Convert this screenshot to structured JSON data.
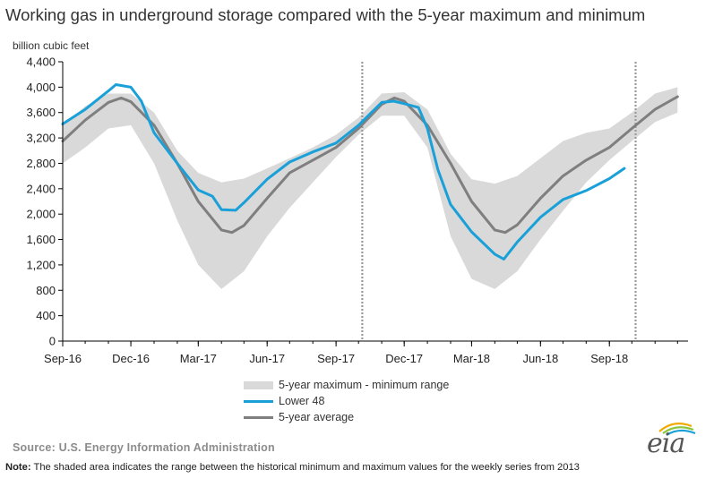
{
  "title": "Working gas in underground  storage compared with the 5-year maximum and minimum",
  "unit_label": "billion cubic feet",
  "legend": {
    "range": "5-year maximum - minimum range",
    "lower48": "Lower 48",
    "average": "5-year average"
  },
  "source": "Source:  U.S. Energy Information Administration",
  "note_label": "Note:",
  "note_text": " The shaded area indicates the range between the historical minimum and maximum values for the weekly series from 2013",
  "logo_text": "eia",
  "colors": {
    "lower48": "#1aa0d8",
    "average": "#7f7f7f",
    "range": "#d9d9d9",
    "axis": "#000000",
    "divider": "#9a9a9a"
  },
  "chart_data": {
    "type": "area",
    "ylim": [
      0,
      4400
    ],
    "yticks": [
      0,
      400,
      800,
      1200,
      1600,
      2000,
      2400,
      2800,
      3200,
      3600,
      4000,
      4400
    ],
    "ytick_labels": [
      "0",
      "400",
      "800",
      "1,200",
      "1,600",
      "2,000",
      "2,400",
      "2,800",
      "3,200",
      "3,600",
      "4,000",
      "4,400"
    ],
    "xlim": [
      "2016-09-01",
      "2018-12-15"
    ],
    "xtick_dates": [
      "2016-09-01",
      "2016-12-01",
      "2017-03-01",
      "2017-06-01",
      "2017-09-01",
      "2017-12-01",
      "2018-03-01",
      "2018-06-01",
      "2018-09-01"
    ],
    "xtick_labels": [
      "Sep-16",
      "Dec-16",
      "Mar-17",
      "Jun-17",
      "Sep-17",
      "Dec-17",
      "Mar-18",
      "Jun-18",
      "Sep-18"
    ],
    "dividers": [
      "2017-10-06",
      "2018-10-06"
    ],
    "series": [
      {
        "name": "5-year maximum - minimum range",
        "kind": "band",
        "x": [
          "2016-09-01",
          "2016-10-01",
          "2016-11-01",
          "2016-12-01",
          "2017-01-01",
          "2017-02-01",
          "2017-03-01",
          "2017-04-01",
          "2017-05-01",
          "2017-06-01",
          "2017-07-01",
          "2017-08-01",
          "2017-09-01",
          "2017-10-01",
          "2017-11-01",
          "2017-12-01",
          "2018-01-01",
          "2018-02-01",
          "2018-03-01",
          "2018-04-01",
          "2018-05-01",
          "2018-06-01",
          "2018-07-01",
          "2018-08-01",
          "2018-09-01",
          "2018-10-01",
          "2018-11-01",
          "2018-12-01"
        ],
        "max": [
          3400,
          3700,
          3900,
          3900,
          3600,
          3000,
          2650,
          2500,
          2560,
          2720,
          2880,
          3050,
          3250,
          3520,
          3900,
          3920,
          3650,
          2950,
          2550,
          2480,
          2600,
          2880,
          3150,
          3280,
          3350,
          3600,
          3900,
          4000
        ],
        "min": [
          2800,
          3050,
          3350,
          3400,
          2800,
          1900,
          1200,
          820,
          1100,
          1650,
          2100,
          2500,
          2900,
          3250,
          3550,
          3550,
          3050,
          1650,
          980,
          820,
          1100,
          1600,
          2050,
          2500,
          2850,
          3150,
          3450,
          3600
        ]
      },
      {
        "name": "Lower 48",
        "kind": "line",
        "x": [
          "2016-09-01",
          "2016-10-01",
          "2016-11-01",
          "2016-11-11",
          "2016-12-01",
          "2016-12-15",
          "2017-01-01",
          "2017-02-01",
          "2017-03-01",
          "2017-03-20",
          "2017-04-01",
          "2017-04-20",
          "2017-05-01",
          "2017-06-01",
          "2017-07-01",
          "2017-08-01",
          "2017-09-01",
          "2017-10-01",
          "2017-11-01",
          "2017-11-17",
          "2017-12-01",
          "2017-12-20",
          "2018-01-01",
          "2018-01-15",
          "2018-02-01",
          "2018-03-01",
          "2018-04-01",
          "2018-04-13",
          "2018-05-01",
          "2018-06-01",
          "2018-07-01",
          "2018-08-01",
          "2018-09-01",
          "2018-09-21"
        ],
        "values": [
          3420,
          3650,
          3940,
          4040,
          4000,
          3780,
          3280,
          2800,
          2380,
          2280,
          2070,
          2060,
          2180,
          2550,
          2820,
          2980,
          3120,
          3400,
          3760,
          3780,
          3740,
          3680,
          3350,
          2700,
          2150,
          1720,
          1370,
          1290,
          1560,
          1950,
          2230,
          2370,
          2560,
          2720
        ]
      },
      {
        "name": "5-year average",
        "kind": "line",
        "x": [
          "2016-09-01",
          "2016-10-01",
          "2016-11-01",
          "2016-11-18",
          "2016-12-01",
          "2017-01-01",
          "2017-02-01",
          "2017-03-01",
          "2017-04-01",
          "2017-04-15",
          "2017-05-01",
          "2017-06-01",
          "2017-07-01",
          "2017-08-01",
          "2017-09-01",
          "2017-10-01",
          "2017-11-01",
          "2017-11-18",
          "2017-12-01",
          "2018-01-01",
          "2018-02-01",
          "2018-03-01",
          "2018-04-01",
          "2018-04-15",
          "2018-05-01",
          "2018-06-01",
          "2018-07-01",
          "2018-08-01",
          "2018-09-01",
          "2018-10-01",
          "2018-11-01",
          "2018-12-01"
        ],
        "values": [
          3150,
          3480,
          3760,
          3830,
          3770,
          3400,
          2800,
          2200,
          1750,
          1710,
          1820,
          2250,
          2650,
          2850,
          3050,
          3350,
          3730,
          3830,
          3780,
          3400,
          2800,
          2200,
          1750,
          1710,
          1830,
          2250,
          2600,
          2850,
          3050,
          3350,
          3650,
          3850
        ]
      }
    ]
  }
}
